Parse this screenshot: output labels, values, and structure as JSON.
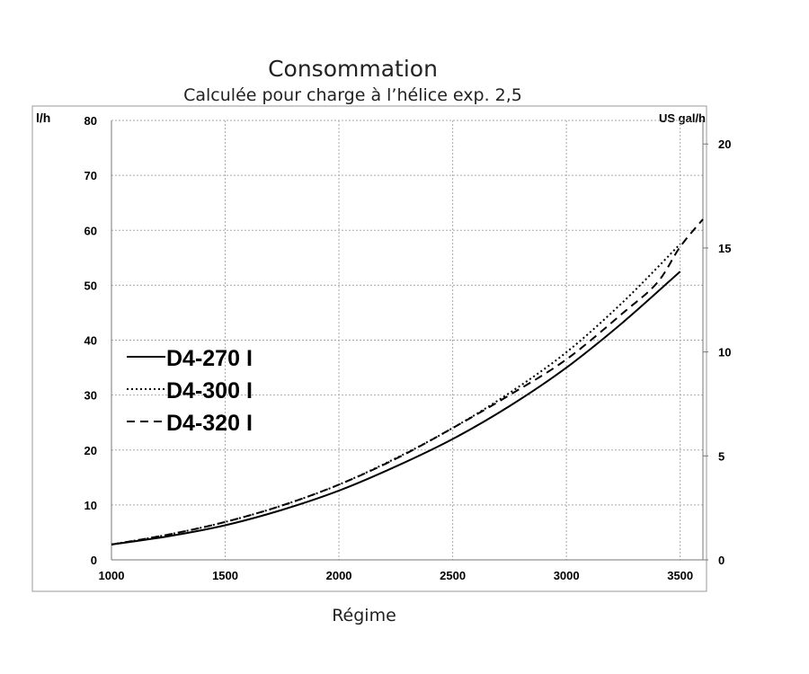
{
  "chart_data": {
    "type": "line",
    "title": "Consommation",
    "subtitle": "Calculée pour charge à l’hélice exp. 2,5",
    "xlabel": "Régime",
    "ylabel": "l/h",
    "y2label": "US gal/h",
    "xlim": [
      1000,
      3600
    ],
    "ylim": [
      0,
      80
    ],
    "y2lim": [
      0,
      21.13
    ],
    "xticks": [
      1000,
      1500,
      2000,
      2500,
      3000,
      3500
    ],
    "yticks": [
      0,
      10,
      20,
      30,
      40,
      50,
      60,
      70,
      80
    ],
    "y2ticks": [
      0,
      5,
      10,
      15,
      20
    ],
    "grid": true,
    "legend_position": "left",
    "series": [
      {
        "name": "D4-270 I",
        "style": "solid",
        "x": [
          1000,
          1250,
          1500,
          1750,
          2000,
          2250,
          2500,
          2750,
          3000,
          3250,
          3500
        ],
        "y": [
          2.8,
          4.3,
          6.3,
          9.1,
          12.6,
          17.0,
          22.0,
          28.0,
          35.0,
          43.3,
          52.5
        ]
      },
      {
        "name": "D4-300 I",
        "style": "dotted",
        "x": [
          1000,
          1250,
          1500,
          1750,
          2000,
          2250,
          2500,
          2750,
          3000,
          3250,
          3500
        ],
        "y": [
          2.8,
          4.6,
          6.9,
          9.9,
          13.7,
          18.5,
          24.0,
          30.4,
          37.8,
          47.0,
          57.5
        ]
      },
      {
        "name": "D4-320 I",
        "style": "dashed",
        "x": [
          1000,
          1250,
          1500,
          1750,
          2000,
          2250,
          2500,
          2750,
          3000,
          3250,
          3400,
          3500,
          3600
        ],
        "y": [
          2.8,
          4.6,
          6.9,
          9.9,
          13.7,
          18.4,
          24.0,
          30.0,
          36.5,
          45.0,
          50.5,
          57.0,
          62.0
        ]
      }
    ]
  }
}
